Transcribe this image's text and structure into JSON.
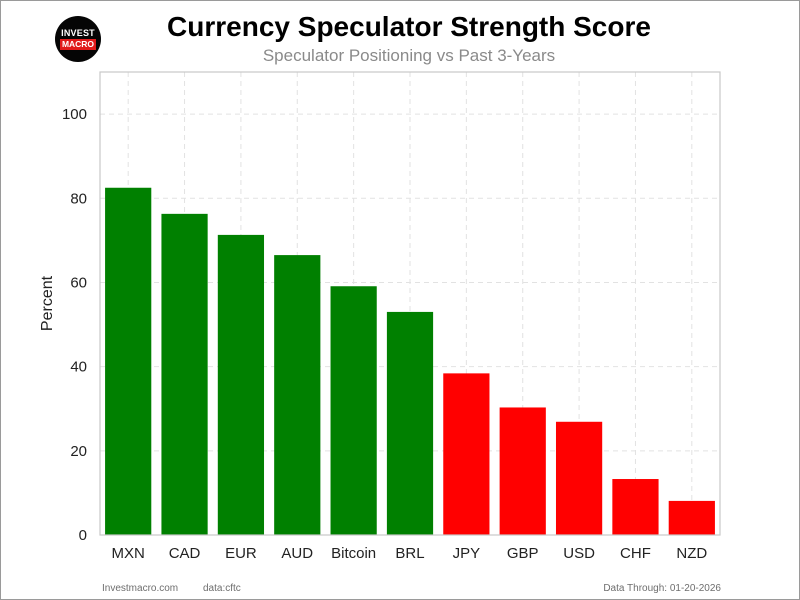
{
  "header": {
    "title": "Currency Speculator Strength Score",
    "subtitle": "Speculator Positioning vs Past 3-Years"
  },
  "logo": {
    "line1": "INVEST",
    "line2": "MACRO"
  },
  "footer": {
    "site": "Investmacro.com",
    "source": "data:cftc",
    "data_through": "Data Through: 01-20-2026"
  },
  "chart_data": {
    "type": "bar",
    "title": "Currency Speculator Strength Score",
    "subtitle": "Speculator Positioning vs Past 3-Years",
    "xlabel": "",
    "ylabel": "Percent",
    "ylim": [
      0,
      110
    ],
    "yticks": [
      0,
      20,
      40,
      60,
      80,
      100
    ],
    "grid": true,
    "legend": "none",
    "categories": [
      "MXN",
      "CAD",
      "EUR",
      "AUD",
      "Bitcoin",
      "BRL",
      "JPY",
      "GBP",
      "USD",
      "CHF",
      "NZD"
    ],
    "values": [
      82.5,
      76.3,
      71.3,
      66.5,
      59.1,
      53.0,
      38.4,
      30.3,
      26.9,
      13.3,
      8.1
    ],
    "colors": {
      "above_50": "#008000",
      "below_50": "#ff0000"
    }
  }
}
